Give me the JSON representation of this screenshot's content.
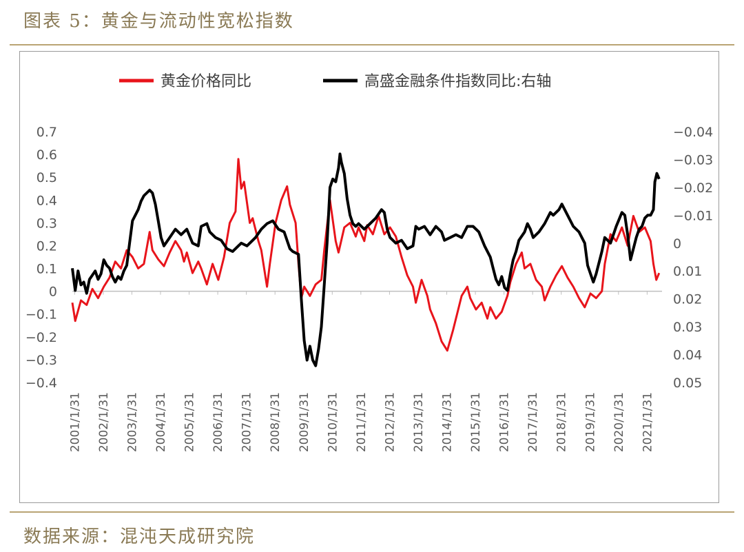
{
  "figure": {
    "title": "图表 5：黄金与流动性宽松指数",
    "source": "数据来源：混沌天成研究院"
  },
  "colors": {
    "gold": "#e8141b",
    "liquidity": "#000000",
    "axis": "#bfbfbf",
    "tick_text": "#595959",
    "caption": "#8a7a55",
    "rule": "#b9a473"
  },
  "chart_data": {
    "type": "line",
    "legend": {
      "placement": "top",
      "items": [
        {
          "key": "gold",
          "label": "黄金价格同比"
        },
        {
          "key": "liquidity",
          "label": "高盛金融条件指数同比:右轴"
        }
      ]
    },
    "x_range": [
      2001.0,
      2021.6
    ],
    "x_tick_labels": [
      "2001/1/31",
      "2002/1/31",
      "2003/1/31",
      "2004/1/31",
      "2005/1/31",
      "2006/1/31",
      "2007/1/31",
      "2008/1/31",
      "2009/1/31",
      "2010/1/31",
      "2011/1/31",
      "2012/1/31",
      "2013/1/31",
      "2014/1/31",
      "2015/1/31",
      "2016/1/31",
      "2017/1/31",
      "2018/1/31",
      "2019/1/31",
      "2020/1/31",
      "2021/1/31"
    ],
    "left_axis": {
      "range": [
        -0.4,
        0.7
      ],
      "tick_labels": [
        "0.7",
        "0.6",
        "0.5",
        "0.4",
        "0.3",
        "0.2",
        "0.1",
        "0",
        "−0.1",
        "−0.2",
        "−0.3",
        "−0.4"
      ]
    },
    "right_axis": {
      "range": [
        -0.04,
        0.05
      ],
      "inverted": true,
      "tick_labels": [
        "−0.04",
        "−0.03",
        "−0.02",
        "−0.01",
        "0",
        "0.01",
        "0.02",
        "0.03",
        "0.04",
        "0.05"
      ]
    },
    "series": [
      {
        "name": "黄金价格同比",
        "axis": "left",
        "points": [
          [
            2001.0,
            -0.05
          ],
          [
            2001.1,
            -0.13
          ],
          [
            2001.3,
            -0.04
          ],
          [
            2001.5,
            -0.06
          ],
          [
            2001.7,
            0.01
          ],
          [
            2001.9,
            -0.03
          ],
          [
            2002.1,
            0.02
          ],
          [
            2002.3,
            0.06
          ],
          [
            2002.5,
            0.13
          ],
          [
            2002.7,
            0.1
          ],
          [
            2002.9,
            0.18
          ],
          [
            2003.1,
            0.15
          ],
          [
            2003.3,
            0.1
          ],
          [
            2003.5,
            0.12
          ],
          [
            2003.7,
            0.26
          ],
          [
            2003.8,
            0.18
          ],
          [
            2004.0,
            0.14
          ],
          [
            2004.2,
            0.11
          ],
          [
            2004.4,
            0.17
          ],
          [
            2004.6,
            0.22
          ],
          [
            2004.8,
            0.18
          ],
          [
            2004.9,
            0.13
          ],
          [
            2005.0,
            0.17
          ],
          [
            2005.2,
            0.08
          ],
          [
            2005.4,
            0.13
          ],
          [
            2005.5,
            0.1
          ],
          [
            2005.7,
            0.03
          ],
          [
            2005.9,
            0.12
          ],
          [
            2006.1,
            0.05
          ],
          [
            2006.3,
            0.15
          ],
          [
            2006.5,
            0.3
          ],
          [
            2006.7,
            0.35
          ],
          [
            2006.8,
            0.58
          ],
          [
            2006.9,
            0.45
          ],
          [
            2007.0,
            0.48
          ],
          [
            2007.2,
            0.3
          ],
          [
            2007.3,
            0.32
          ],
          [
            2007.5,
            0.22
          ],
          [
            2007.6,
            0.18
          ],
          [
            2007.8,
            0.02
          ],
          [
            2007.9,
            0.12
          ],
          [
            2008.1,
            0.3
          ],
          [
            2008.3,
            0.4
          ],
          [
            2008.5,
            0.46
          ],
          [
            2008.6,
            0.38
          ],
          [
            2008.8,
            0.3
          ],
          [
            2008.9,
            0.12
          ],
          [
            2009.0,
            -0.03
          ],
          [
            2009.1,
            0.02
          ],
          [
            2009.3,
            -0.02
          ],
          [
            2009.5,
            0.03
          ],
          [
            2009.7,
            0.05
          ],
          [
            2009.8,
            0.18
          ],
          [
            2010.0,
            0.4
          ],
          [
            2010.2,
            0.22
          ],
          [
            2010.3,
            0.17
          ],
          [
            2010.5,
            0.28
          ],
          [
            2010.7,
            0.3
          ],
          [
            2010.9,
            0.24
          ],
          [
            2011.0,
            0.28
          ],
          [
            2011.2,
            0.22
          ],
          [
            2011.3,
            0.29
          ],
          [
            2011.5,
            0.25
          ],
          [
            2011.7,
            0.33
          ],
          [
            2011.9,
            0.25
          ],
          [
            2012.1,
            0.28
          ],
          [
            2012.3,
            0.24
          ],
          [
            2012.5,
            0.15
          ],
          [
            2012.7,
            0.07
          ],
          [
            2012.9,
            0.02
          ],
          [
            2013.0,
            -0.05
          ],
          [
            2013.2,
            0.05
          ],
          [
            2013.4,
            -0.02
          ],
          [
            2013.5,
            -0.08
          ],
          [
            2013.7,
            -0.14
          ],
          [
            2013.9,
            -0.22
          ],
          [
            2014.1,
            -0.26
          ],
          [
            2014.3,
            -0.17
          ],
          [
            2014.5,
            -0.07
          ],
          [
            2014.6,
            -0.02
          ],
          [
            2014.8,
            0.02
          ],
          [
            2014.9,
            -0.03
          ],
          [
            2015.1,
            -0.08
          ],
          [
            2015.3,
            -0.05
          ],
          [
            2015.5,
            -0.12
          ],
          [
            2015.6,
            -0.07
          ],
          [
            2015.8,
            -0.12
          ],
          [
            2016.0,
            -0.09
          ],
          [
            2016.2,
            -0.02
          ],
          [
            2016.3,
            0.04
          ],
          [
            2016.5,
            0.12
          ],
          [
            2016.7,
            0.17
          ],
          [
            2016.8,
            0.1
          ],
          [
            2017.0,
            0.12
          ],
          [
            2017.2,
            0.05
          ],
          [
            2017.4,
            0.02
          ],
          [
            2017.5,
            -0.04
          ],
          [
            2017.7,
            0.02
          ],
          [
            2017.9,
            0.07
          ],
          [
            2018.1,
            0.11
          ],
          [
            2018.3,
            0.06
          ],
          [
            2018.5,
            0.02
          ],
          [
            2018.7,
            -0.03
          ],
          [
            2018.9,
            -0.07
          ],
          [
            2019.1,
            -0.01
          ],
          [
            2019.3,
            -0.03
          ],
          [
            2019.5,
            0.0
          ],
          [
            2019.6,
            0.12
          ],
          [
            2019.8,
            0.25
          ],
          [
            2020.0,
            0.22
          ],
          [
            2020.2,
            0.28
          ],
          [
            2020.4,
            0.2
          ],
          [
            2020.6,
            0.33
          ],
          [
            2020.8,
            0.26
          ],
          [
            2021.0,
            0.28
          ],
          [
            2021.2,
            0.22
          ],
          [
            2021.3,
            0.12
          ],
          [
            2021.4,
            0.05
          ],
          [
            2021.5,
            0.08
          ]
        ]
      },
      {
        "name": "高盛金融条件指数同比:右轴",
        "axis": "right",
        "points": [
          [
            2001.0,
            0.009
          ],
          [
            2001.1,
            0.017
          ],
          [
            2001.2,
            0.01
          ],
          [
            2001.3,
            0.015
          ],
          [
            2001.4,
            0.014
          ],
          [
            2001.5,
            0.018
          ],
          [
            2001.6,
            0.013
          ],
          [
            2001.8,
            0.01
          ],
          [
            2001.9,
            0.013
          ],
          [
            2002.0,
            0.011
          ],
          [
            2002.1,
            0.006
          ],
          [
            2002.2,
            0.008
          ],
          [
            2002.3,
            0.009
          ],
          [
            2002.4,
            0.012
          ],
          [
            2002.5,
            0.014
          ],
          [
            2002.6,
            0.012
          ],
          [
            2002.7,
            0.013
          ],
          [
            2002.8,
            0.01
          ],
          [
            2002.9,
            0.008
          ],
          [
            2003.0,
            0.0
          ],
          [
            2003.1,
            -0.008
          ],
          [
            2003.3,
            -0.012
          ],
          [
            2003.4,
            -0.015
          ],
          [
            2003.5,
            -0.017
          ],
          [
            2003.6,
            -0.018
          ],
          [
            2003.7,
            -0.019
          ],
          [
            2003.8,
            -0.018
          ],
          [
            2003.9,
            -0.014
          ],
          [
            2004.0,
            -0.008
          ],
          [
            2004.1,
            -0.002
          ],
          [
            2004.2,
            0.001
          ],
          [
            2004.4,
            -0.002
          ],
          [
            2004.6,
            -0.005
          ],
          [
            2004.8,
            -0.003
          ],
          [
            2005.0,
            -0.005
          ],
          [
            2005.2,
            0.0
          ],
          [
            2005.4,
            0.001
          ],
          [
            2005.5,
            -0.006
          ],
          [
            2005.7,
            -0.007
          ],
          [
            2005.8,
            -0.004
          ],
          [
            2006.0,
            -0.002
          ],
          [
            2006.2,
            -0.001
          ],
          [
            2006.4,
            0.002
          ],
          [
            2006.6,
            0.003
          ],
          [
            2006.8,
            0.001
          ],
          [
            2006.9,
            0.0
          ],
          [
            2007.1,
            0.001
          ],
          [
            2007.2,
            0.0
          ],
          [
            2007.4,
            -0.002
          ],
          [
            2007.6,
            -0.005
          ],
          [
            2007.8,
            -0.007
          ],
          [
            2008.0,
            -0.008
          ],
          [
            2008.2,
            -0.005
          ],
          [
            2008.4,
            -0.004
          ],
          [
            2008.6,
            0.002
          ],
          [
            2008.7,
            0.003
          ],
          [
            2008.9,
            0.004
          ],
          [
            2009.0,
            0.02
          ],
          [
            2009.1,
            0.035
          ],
          [
            2009.2,
            0.042
          ],
          [
            2009.3,
            0.037
          ],
          [
            2009.4,
            0.042
          ],
          [
            2009.5,
            0.044
          ],
          [
            2009.6,
            0.038
          ],
          [
            2009.7,
            0.03
          ],
          [
            2009.8,
            0.015
          ],
          [
            2009.9,
            0.0
          ],
          [
            2010.0,
            -0.02
          ],
          [
            2010.1,
            -0.023
          ],
          [
            2010.2,
            -0.022
          ],
          [
            2010.3,
            -0.027
          ],
          [
            2010.35,
            -0.032
          ],
          [
            2010.4,
            -0.029
          ],
          [
            2010.5,
            -0.025
          ],
          [
            2010.6,
            -0.016
          ],
          [
            2010.7,
            -0.01
          ],
          [
            2010.8,
            -0.007
          ],
          [
            2010.9,
            -0.006
          ],
          [
            2011.0,
            -0.007
          ],
          [
            2011.2,
            -0.005
          ],
          [
            2011.4,
            -0.007
          ],
          [
            2011.6,
            -0.009
          ],
          [
            2011.8,
            -0.012
          ],
          [
            2011.9,
            -0.011
          ],
          [
            2012.0,
            -0.005
          ],
          [
            2012.1,
            -0.002
          ],
          [
            2012.3,
            0.0
          ],
          [
            2012.5,
            -0.001
          ],
          [
            2012.7,
            0.002
          ],
          [
            2012.9,
            0.001
          ],
          [
            2013.0,
            -0.006
          ],
          [
            2013.1,
            -0.005
          ],
          [
            2013.3,
            -0.006
          ],
          [
            2013.5,
            -0.003
          ],
          [
            2013.7,
            -0.006
          ],
          [
            2013.9,
            -0.004
          ],
          [
            2014.0,
            -0.001
          ],
          [
            2014.2,
            -0.002
          ],
          [
            2014.4,
            -0.003
          ],
          [
            2014.6,
            -0.002
          ],
          [
            2014.8,
            -0.006
          ],
          [
            2015.0,
            -0.006
          ],
          [
            2015.2,
            -0.004
          ],
          [
            2015.4,
            0.001
          ],
          [
            2015.6,
            0.005
          ],
          [
            2015.7,
            0.009
          ],
          [
            2015.8,
            0.013
          ],
          [
            2015.9,
            0.015
          ],
          [
            2016.0,
            0.012
          ],
          [
            2016.1,
            0.016
          ],
          [
            2016.2,
            0.017
          ],
          [
            2016.3,
            0.011
          ],
          [
            2016.4,
            0.006
          ],
          [
            2016.5,
            0.003
          ],
          [
            2016.6,
            -0.001
          ],
          [
            2016.8,
            -0.004
          ],
          [
            2016.9,
            -0.007
          ],
          [
            2017.0,
            -0.005
          ],
          [
            2017.1,
            -0.002
          ],
          [
            2017.3,
            -0.004
          ],
          [
            2017.5,
            -0.007
          ],
          [
            2017.7,
            -0.011
          ],
          [
            2017.8,
            -0.01
          ],
          [
            2018.0,
            -0.012
          ],
          [
            2018.1,
            -0.014
          ],
          [
            2018.3,
            -0.01
          ],
          [
            2018.5,
            -0.006
          ],
          [
            2018.7,
            -0.004
          ],
          [
            2018.9,
            0.0
          ],
          [
            2019.0,
            0.008
          ],
          [
            2019.2,
            0.014
          ],
          [
            2019.3,
            0.011
          ],
          [
            2019.5,
            0.003
          ],
          [
            2019.6,
            -0.002
          ],
          [
            2019.8,
            0.0
          ],
          [
            2019.9,
            -0.003
          ],
          [
            2020.0,
            -0.006
          ],
          [
            2020.2,
            -0.011
          ],
          [
            2020.3,
            -0.01
          ],
          [
            2020.4,
            -0.003
          ],
          [
            2020.5,
            0.006
          ],
          [
            2020.7,
            -0.002
          ],
          [
            2020.8,
            -0.005
          ],
          [
            2020.9,
            -0.006
          ],
          [
            2021.0,
            -0.009
          ],
          [
            2021.1,
            -0.01
          ],
          [
            2021.2,
            -0.01
          ],
          [
            2021.3,
            -0.012
          ],
          [
            2021.35,
            -0.022
          ],
          [
            2021.42,
            -0.025
          ],
          [
            2021.5,
            -0.023
          ]
        ]
      }
    ]
  }
}
